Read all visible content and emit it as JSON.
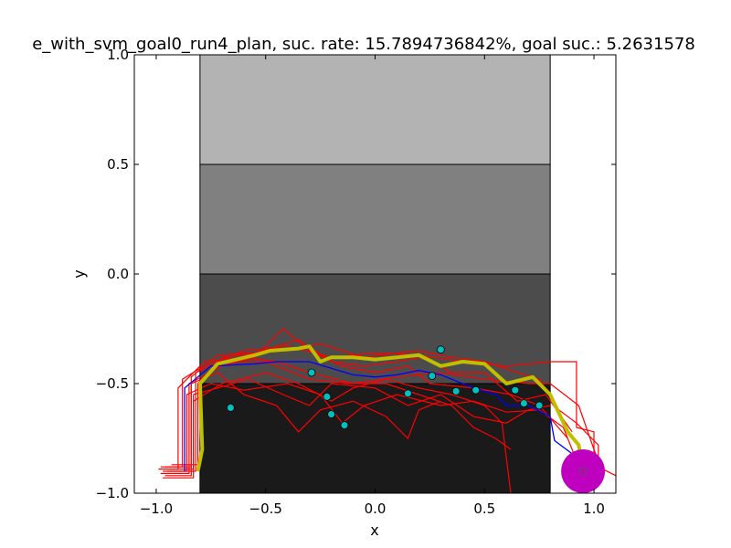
{
  "chart_data": {
    "type": "line",
    "title": "e_with_svm_goal0_run4_plan, suc. rate: 15.7894736842%, goal suc.: 5.2631578",
    "xlabel": "x",
    "ylabel": "y",
    "xlim": [
      -1.1,
      1.1
    ],
    "ylim": [
      -1.0,
      1.0
    ],
    "x_ticks": [
      {
        "value": -1.0,
        "label": "−1.0"
      },
      {
        "value": -0.5,
        "label": "−0.5"
      },
      {
        "value": 0.0,
        "label": "0.0"
      },
      {
        "value": 0.5,
        "label": "0.5"
      },
      {
        "value": 1.0,
        "label": "1.0"
      }
    ],
    "y_ticks": [
      {
        "value": -1.0,
        "label": "−1.0"
      },
      {
        "value": -0.5,
        "label": "−0.5"
      },
      {
        "value": 0.0,
        "label": "0.0"
      },
      {
        "value": 0.5,
        "label": "0.5"
      },
      {
        "value": 1.0,
        "label": "1.0"
      }
    ],
    "grid": false,
    "regions": [
      {
        "x": [
          -0.8,
          0.8
        ],
        "y": [
          0.5,
          1.0
        ],
        "color": "#b3b3b3"
      },
      {
        "x": [
          -0.8,
          0.8
        ],
        "y": [
          0.0,
          0.5
        ],
        "color": "#808080"
      },
      {
        "x": [
          -0.8,
          0.8
        ],
        "y": [
          -0.5,
          0.0
        ],
        "color": "#4c4c4c"
      },
      {
        "x": [
          -0.8,
          0.8
        ],
        "y": [
          -1.0,
          -0.5
        ],
        "color": "#1a1a1a"
      }
    ],
    "goal": {
      "x": 0.95,
      "y": -0.9,
      "radius": 0.1,
      "color": "#bf00bf"
    },
    "red_trajectories": [
      [
        [
          -0.98,
          -0.88
        ],
        [
          -0.88,
          -0.88
        ],
        [
          -0.88,
          -0.48
        ],
        [
          -0.8,
          -0.43
        ],
        [
          -0.6,
          -0.35
        ],
        [
          -0.4,
          -0.33
        ],
        [
          -0.2,
          -0.38
        ],
        [
          0.0,
          -0.36
        ],
        [
          0.2,
          -0.37
        ],
        [
          0.4,
          -0.4
        ],
        [
          0.6,
          -0.42
        ],
        [
          0.8,
          -0.4
        ],
        [
          0.92,
          -0.4
        ],
        [
          0.92,
          -0.7
        ],
        [
          1.0,
          -0.72
        ],
        [
          1.0,
          -0.9
        ]
      ],
      [
        [
          -0.99,
          -0.89
        ],
        [
          -0.9,
          -0.89
        ],
        [
          -0.9,
          -0.52
        ],
        [
          -0.78,
          -0.4
        ],
        [
          -0.6,
          -0.38
        ],
        [
          -0.45,
          -0.4
        ],
        [
          -0.3,
          -0.45
        ],
        [
          -0.1,
          -0.5
        ],
        [
          0.1,
          -0.47
        ],
        [
          0.3,
          -0.45
        ],
        [
          0.5,
          -0.48
        ],
        [
          0.7,
          -0.5
        ],
        [
          0.8,
          -0.5
        ],
        [
          0.93,
          -0.6
        ],
        [
          1.0,
          -0.8
        ],
        [
          1.02,
          -0.85
        ]
      ],
      [
        [
          -0.97,
          -0.9
        ],
        [
          -0.86,
          -0.9
        ],
        [
          -0.86,
          -0.55
        ],
        [
          -0.75,
          -0.5
        ],
        [
          -0.6,
          -0.53
        ],
        [
          -0.4,
          -0.5
        ],
        [
          -0.25,
          -0.55
        ],
        [
          -0.15,
          -0.68
        ],
        [
          -0.05,
          -0.6
        ],
        [
          0.1,
          -0.55
        ],
        [
          0.3,
          -0.6
        ],
        [
          0.45,
          -0.58
        ],
        [
          0.6,
          -0.63
        ],
        [
          0.75,
          -0.62
        ],
        [
          0.86,
          -0.7
        ],
        [
          0.92,
          -0.85
        ]
      ],
      [
        [
          -0.98,
          -0.91
        ],
        [
          -0.85,
          -0.91
        ],
        [
          -0.85,
          -0.5
        ],
        [
          -0.7,
          -0.42
        ],
        [
          -0.55,
          -0.38
        ],
        [
          -0.42,
          -0.25
        ],
        [
          -0.3,
          -0.35
        ],
        [
          -0.15,
          -0.42
        ],
        [
          0.0,
          -0.45
        ],
        [
          0.15,
          -0.42
        ],
        [
          0.25,
          -0.5
        ],
        [
          0.45,
          -0.52
        ],
        [
          0.62,
          -0.55
        ],
        [
          0.75,
          -0.6
        ],
        [
          0.88,
          -0.75
        ]
      ],
      [
        [
          -0.96,
          -0.92
        ],
        [
          -0.84,
          -0.92
        ],
        [
          -0.84,
          -0.47
        ],
        [
          -0.72,
          -0.37
        ],
        [
          -0.55,
          -0.36
        ],
        [
          -0.35,
          -0.3
        ],
        [
          -0.2,
          -0.4
        ],
        [
          -0.05,
          -0.42
        ],
        [
          0.1,
          -0.4
        ],
        [
          0.22,
          -0.38
        ],
        [
          0.35,
          -0.45
        ],
        [
          0.5,
          -0.45
        ],
        [
          0.65,
          -0.58
        ],
        [
          0.78,
          -0.55
        ],
        [
          0.9,
          -0.72
        ]
      ],
      [
        [
          -0.97,
          -0.93
        ],
        [
          -0.83,
          -0.93
        ],
        [
          -0.83,
          -0.58
        ],
        [
          -0.7,
          -0.5
        ],
        [
          -0.5,
          -0.45
        ],
        [
          -0.35,
          -0.5
        ],
        [
          -0.2,
          -0.58
        ],
        [
          -0.1,
          -0.52
        ],
        [
          0.05,
          -0.48
        ],
        [
          0.2,
          -0.52
        ],
        [
          0.35,
          -0.55
        ],
        [
          0.5,
          -0.6
        ],
        [
          0.58,
          -0.68
        ],
        [
          0.62,
          -1.0
        ]
      ],
      [
        [
          -0.95,
          -0.9
        ],
        [
          -0.82,
          -0.9
        ],
        [
          -0.82,
          -0.45
        ],
        [
          -0.7,
          -0.4
        ],
        [
          -0.5,
          -0.4
        ],
        [
          -0.3,
          -0.48
        ],
        [
          -0.12,
          -0.5
        ],
        [
          0.05,
          -0.5
        ],
        [
          0.2,
          -0.55
        ],
        [
          0.35,
          -0.6
        ],
        [
          0.45,
          -0.7
        ],
        [
          0.55,
          -0.75
        ],
        [
          0.62,
          -0.8
        ]
      ],
      [
        [
          -0.96,
          -0.88
        ],
        [
          -0.84,
          -0.88
        ],
        [
          -0.84,
          -0.5
        ],
        [
          -0.72,
          -0.45
        ],
        [
          -0.6,
          -0.55
        ],
        [
          -0.45,
          -0.6
        ],
        [
          -0.35,
          -0.72
        ],
        [
          -0.25,
          -0.62
        ],
        [
          -0.1,
          -0.58
        ],
        [
          0.05,
          -0.65
        ],
        [
          0.15,
          -0.75
        ],
        [
          0.2,
          -0.62
        ],
        [
          0.3,
          -0.58
        ]
      ],
      [
        [
          -0.93,
          -0.87
        ],
        [
          -0.81,
          -0.87
        ],
        [
          -0.81,
          -0.5
        ],
        [
          -0.7,
          -0.38
        ],
        [
          -0.45,
          -0.35
        ],
        [
          -0.25,
          -0.32
        ],
        [
          -0.05,
          -0.38
        ],
        [
          0.2,
          -0.35
        ],
        [
          0.35,
          -0.38
        ],
        [
          0.5,
          -0.4
        ],
        [
          0.62,
          -0.44
        ],
        [
          0.75,
          -0.48
        ],
        [
          0.84,
          -0.62
        ],
        [
          0.92,
          -0.68
        ],
        [
          1.02,
          -0.78
        ],
        [
          1.02,
          -0.88
        ],
        [
          1.1,
          -0.92
        ]
      ],
      [
        [
          -0.94,
          -0.89
        ],
        [
          -0.83,
          -0.89
        ],
        [
          -0.83,
          -0.55
        ],
        [
          -0.72,
          -0.52
        ],
        [
          -0.58,
          -0.48
        ],
        [
          -0.42,
          -0.55
        ],
        [
          -0.3,
          -0.6
        ],
        [
          -0.2,
          -0.5
        ],
        [
          0.0,
          -0.52
        ],
        [
          0.15,
          -0.6
        ],
        [
          0.3,
          -0.55
        ],
        [
          0.45,
          -0.65
        ],
        [
          0.6,
          -0.68
        ],
        [
          0.7,
          -0.62
        ],
        [
          0.8,
          -0.6
        ]
      ]
    ],
    "blue_trajectory": [
      [
        -0.87,
        -0.9
      ],
      [
        -0.87,
        -0.52
      ],
      [
        -0.75,
        -0.42
      ],
      [
        -0.55,
        -0.41
      ],
      [
        -0.45,
        -0.4
      ],
      [
        -0.3,
        -0.4
      ],
      [
        -0.2,
        -0.43
      ],
      [
        -0.1,
        -0.46
      ],
      [
        0.0,
        -0.47
      ],
      [
        0.1,
        -0.46
      ],
      [
        0.2,
        -0.44
      ],
      [
        0.3,
        -0.46
      ],
      [
        0.45,
        -0.52
      ],
      [
        0.55,
        -0.55
      ],
      [
        0.6,
        -0.6
      ],
      [
        0.7,
        -0.6
      ],
      [
        0.8,
        -0.65
      ],
      [
        0.82,
        -0.76
      ],
      [
        0.9,
        -0.82
      ],
      [
        1.0,
        -0.85
      ]
    ],
    "plan_path": [
      [
        -0.81,
        -0.9
      ],
      [
        -0.79,
        -0.8
      ],
      [
        -0.8,
        -0.5
      ],
      [
        -0.72,
        -0.41
      ],
      [
        -0.55,
        -0.37
      ],
      [
        -0.48,
        -0.35
      ],
      [
        -0.35,
        -0.34
      ],
      [
        -0.3,
        -0.33
      ],
      [
        -0.25,
        -0.4
      ],
      [
        -0.2,
        -0.38
      ],
      [
        -0.1,
        -0.38
      ],
      [
        0.0,
        -0.39
      ],
      [
        0.1,
        -0.38
      ],
      [
        0.2,
        -0.37
      ],
      [
        0.3,
        -0.42
      ],
      [
        0.4,
        -0.4
      ],
      [
        0.5,
        -0.41
      ],
      [
        0.6,
        -0.5
      ],
      [
        0.72,
        -0.47
      ],
      [
        0.8,
        -0.55
      ],
      [
        0.88,
        -0.72
      ],
      [
        0.93,
        -0.78
      ],
      [
        0.95,
        -0.9
      ]
    ],
    "points": [
      [
        -0.66,
        -0.61
      ],
      [
        -0.29,
        -0.45
      ],
      [
        -0.22,
        -0.56
      ],
      [
        -0.2,
        -0.64
      ],
      [
        -0.14,
        -0.69
      ],
      [
        0.15,
        -0.545
      ],
      [
        0.26,
        -0.465
      ],
      [
        0.3,
        -0.345
      ],
      [
        0.37,
        -0.535
      ],
      [
        0.46,
        -0.53
      ],
      [
        0.64,
        -0.53
      ],
      [
        0.68,
        -0.59
      ],
      [
        0.75,
        -0.6
      ]
    ]
  }
}
